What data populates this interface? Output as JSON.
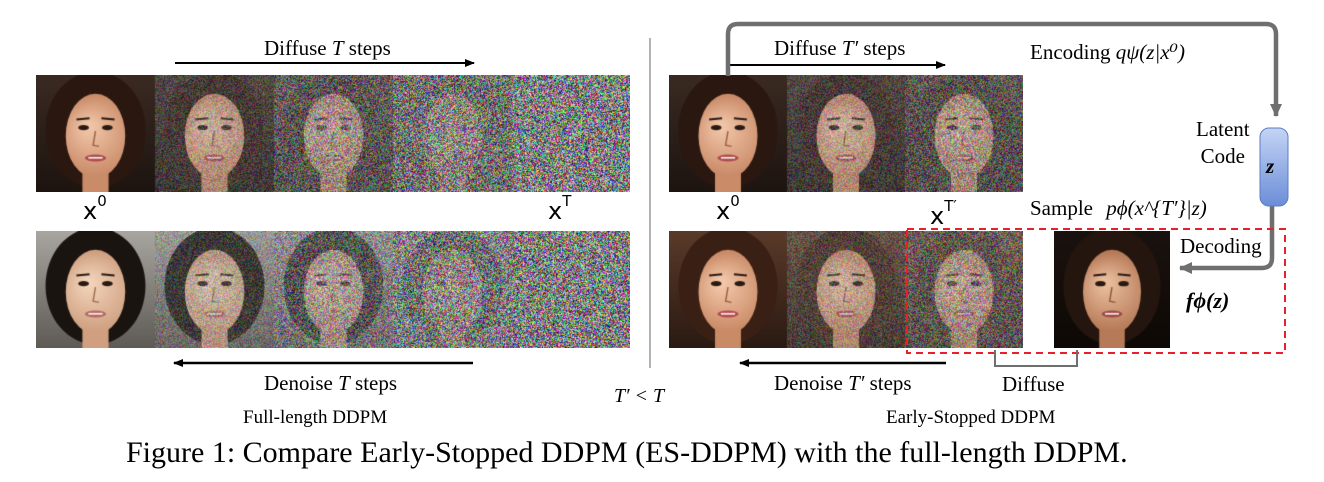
{
  "left": {
    "diffuse_label": "Diffuse",
    "diffuse_var": "T",
    "diffuse_suffix": "steps",
    "denoise_label": "Denoise",
    "denoise_var": "T",
    "denoise_suffix": "steps",
    "x0_base": "x",
    "x0_sup": "0",
    "xT_base": "x",
    "xT_sup": "T",
    "title": "Full-length DDPM"
  },
  "middle": {
    "condition": "T′ < T"
  },
  "right": {
    "diffuse_label": "Diffuse",
    "diffuse_var": "T′",
    "diffuse_suffix": "steps",
    "denoise_label": "Denoise",
    "denoise_var": "T′",
    "denoise_suffix": "steps",
    "encoding_label": "Encoding",
    "encoding_expr": "qψ(z|x⁰)",
    "latent_label_1": "Latent",
    "latent_label_2": "Code",
    "latent_symbol": "z",
    "sample_label": "Sample",
    "sample_expr": "pϕ(x^{T′}|z)",
    "decoding_label": "Decoding",
    "decoder_output": "fϕ(z)",
    "diffuse_bottom_label": "Diffuse",
    "x0_base": "x",
    "x0_sup": "0",
    "xT_base": "x",
    "xT_sup": "T′",
    "title": "Early-Stopped DDPM"
  },
  "caption": "Figure 1: Compare Early-Stopped DDPM (ES-DDPM) with the full-length DDPM.",
  "colors": {
    "arrow_gray": "#6f6f6f",
    "dashed_red": "#e8202a",
    "latent_box_top": "#b9ccf2",
    "latent_box_bottom": "#6f8fd6"
  },
  "image_rows": {
    "left_top_noise": [
      0,
      0.35,
      0.6,
      0.85,
      1.0
    ],
    "left_bottom_noise": [
      0,
      0.35,
      0.6,
      0.85,
      1.0
    ],
    "right_top_noise": [
      0,
      0.35,
      0.55
    ],
    "right_bottom_noise": [
      0,
      0.35,
      0.55
    ]
  }
}
